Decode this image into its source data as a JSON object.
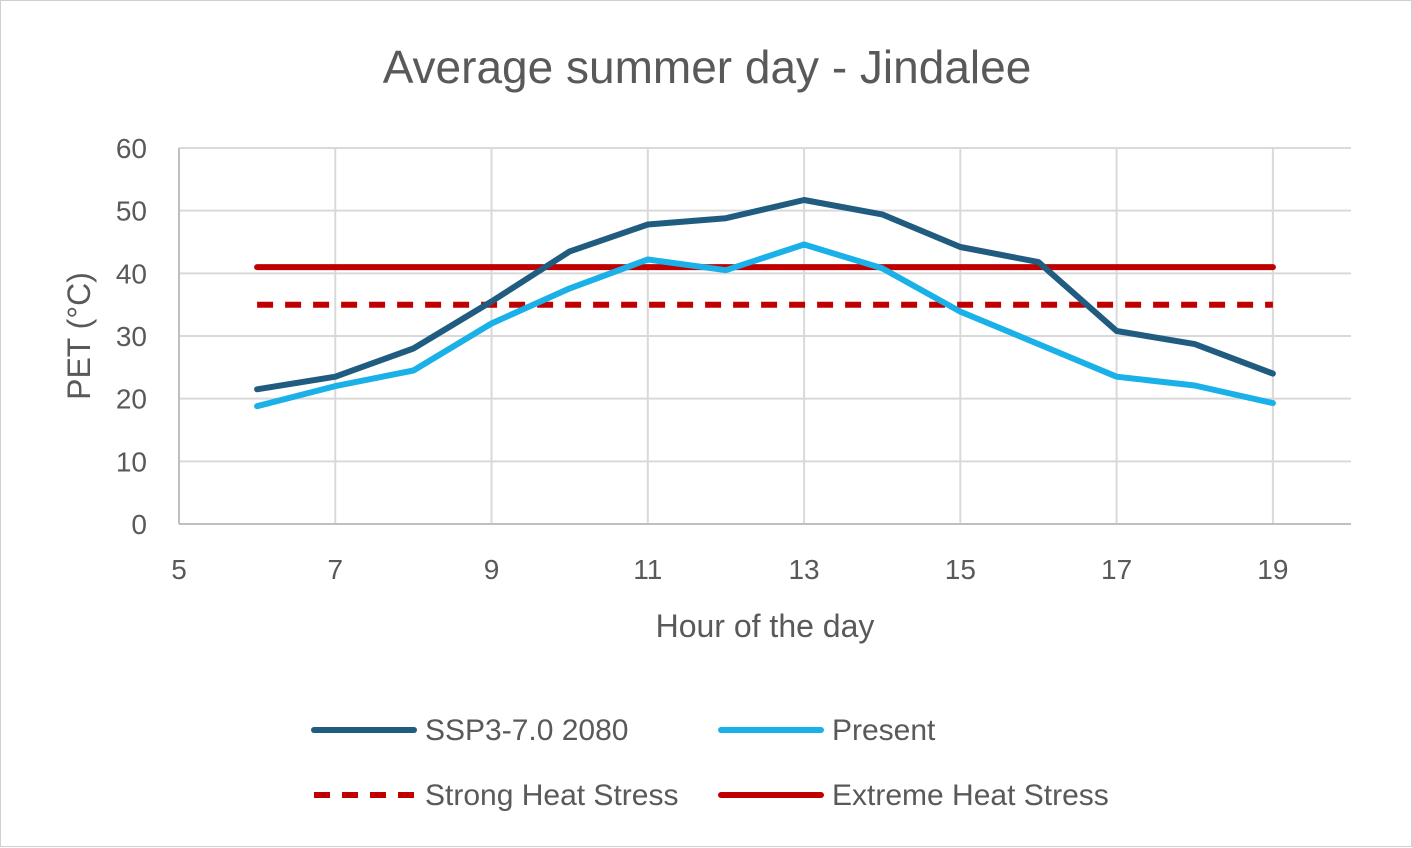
{
  "chart_data": {
    "type": "line",
    "title": "Average summer day - Jindalee",
    "xlabel": "Hour of the day",
    "ylabel": "PET (°C)",
    "xlim": [
      5,
      20
    ],
    "ylim": [
      0,
      60
    ],
    "x_ticks": [
      5,
      7,
      9,
      11,
      13,
      15,
      17,
      19
    ],
    "y_ticks": [
      0,
      10,
      20,
      30,
      40,
      50,
      60
    ],
    "grid": true,
    "legend_position": "bottom",
    "series": [
      {
        "name": "SSP3-7.0 2080",
        "color": "#1f5c80",
        "style": "solid",
        "x": [
          6,
          7,
          8,
          9,
          10,
          11,
          12,
          13,
          14,
          15,
          16,
          17,
          18,
          19
        ],
        "values": [
          21.5,
          23.5,
          28,
          35.5,
          43.5,
          47.8,
          48.8,
          51.7,
          49.4,
          44.2,
          41.8,
          30.8,
          28.7,
          24
        ]
      },
      {
        "name": "Present",
        "color": "#1ab0e8",
        "style": "solid",
        "x": [
          6,
          7,
          8,
          9,
          10,
          11,
          12,
          13,
          14,
          15,
          16,
          17,
          18,
          19
        ],
        "values": [
          18.8,
          22,
          24.5,
          32,
          37.6,
          42.2,
          40.5,
          44.6,
          40.8,
          33.9,
          28.7,
          23.5,
          22.1,
          19.3
        ]
      },
      {
        "name": "Strong Heat Stress",
        "color": "#c00000",
        "style": "dashed",
        "x": [
          6,
          19
        ],
        "values": [
          35,
          35
        ]
      },
      {
        "name": "Extreme Heat Stress",
        "color": "#c00000",
        "style": "solid",
        "x": [
          6,
          19
        ],
        "values": [
          41,
          41
        ]
      }
    ]
  }
}
